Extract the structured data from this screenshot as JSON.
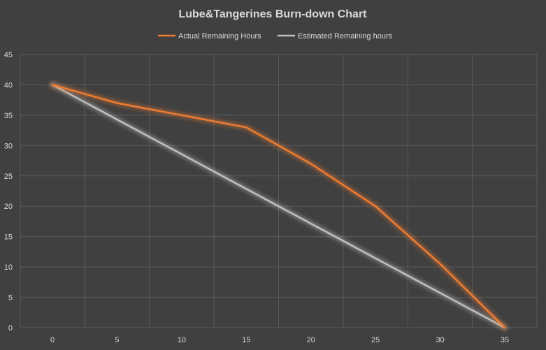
{
  "chart_data": {
    "type": "line",
    "title": "Lube&Tangerines Burn-down Chart",
    "xlabel": "",
    "ylabel": "",
    "xlim": [
      0,
      35
    ],
    "ylim": [
      0,
      45
    ],
    "x_ticks": [
      "0",
      "5",
      "10",
      "15",
      "20",
      "25",
      "30",
      "35"
    ],
    "y_ticks": [
      "0",
      "5",
      "10",
      "15",
      "20",
      "25",
      "30",
      "35",
      "40",
      "45"
    ],
    "grid": true,
    "legend_position": "top",
    "series": [
      {
        "name": "Actual Remaining Hours",
        "color": "#ed7d31",
        "x": [
          0,
          5,
          10,
          15,
          20,
          25,
          30,
          35
        ],
        "y": [
          40,
          37,
          35,
          33,
          27,
          20,
          10.5,
          0
        ]
      },
      {
        "name": "Estimated Remaining hours",
        "color": "#bfbfbf",
        "x": [
          0,
          35
        ],
        "y": [
          40,
          0
        ]
      }
    ]
  }
}
